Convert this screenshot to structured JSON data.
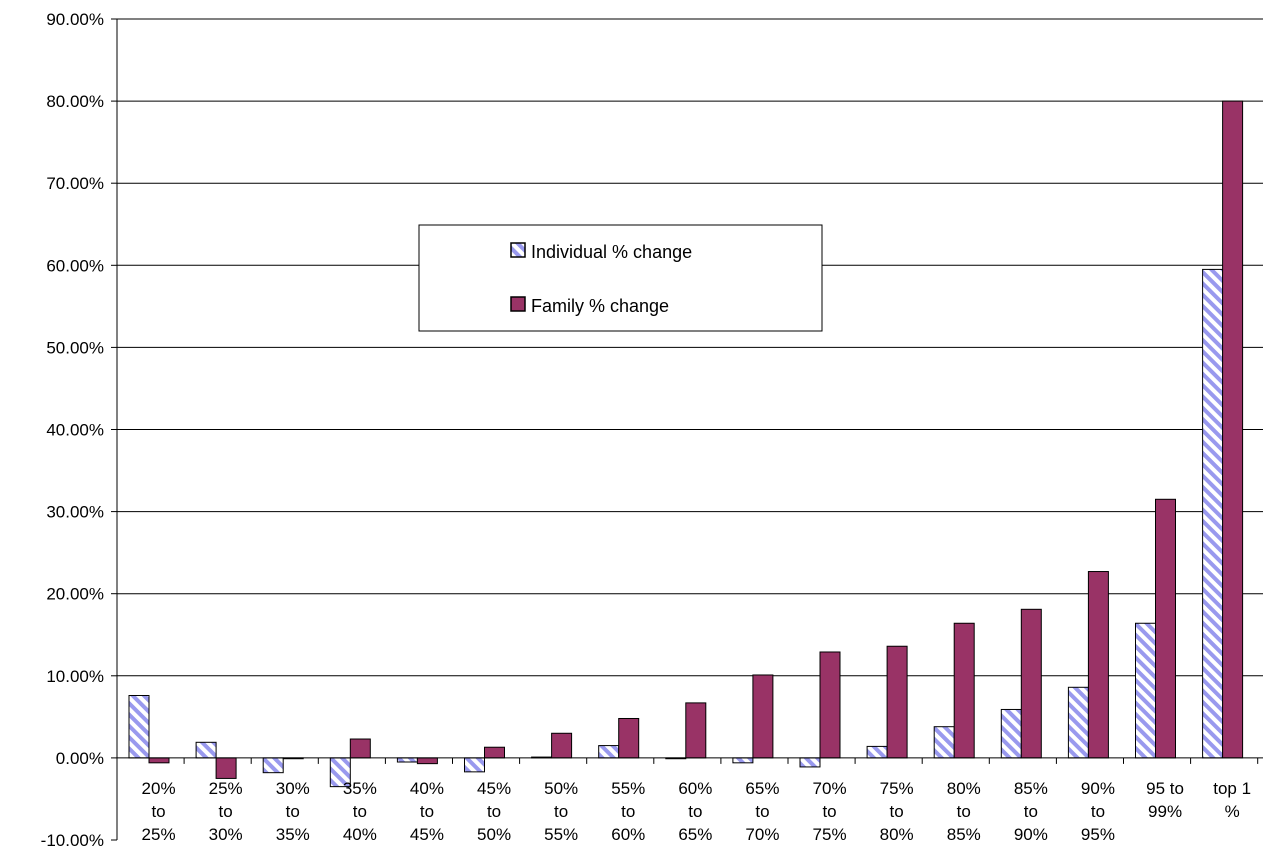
{
  "chart_data": {
    "type": "bar",
    "title": "",
    "xlabel": "",
    "ylabel": "",
    "ylim": [
      -10,
      90
    ],
    "y_ticks": [
      -10,
      0,
      10,
      20,
      30,
      40,
      50,
      60,
      70,
      80,
      90
    ],
    "y_tick_labels": [
      "-10.00%",
      "0.00%",
      "10.00%",
      "20.00%",
      "30.00%",
      "40.00%",
      "50.00%",
      "60.00%",
      "70.00%",
      "80.00%",
      "90.00%"
    ],
    "grid": "horizontal",
    "legend_position": "upper-center",
    "categories": [
      [
        "20%",
        "to",
        "25%"
      ],
      [
        "25%",
        "to",
        "30%"
      ],
      [
        "30%",
        "to",
        "35%"
      ],
      [
        "35%",
        "to",
        "40%"
      ],
      [
        "40%",
        "to",
        "45%"
      ],
      [
        "45%",
        "to",
        "50%"
      ],
      [
        "50%",
        "to",
        "55%"
      ],
      [
        "55%",
        "to",
        "60%"
      ],
      [
        "60%",
        "to",
        "65%"
      ],
      [
        "65%",
        "to",
        "70%"
      ],
      [
        "70%",
        "to",
        "75%"
      ],
      [
        "75%",
        "to",
        "80%"
      ],
      [
        "80%",
        "to",
        "85%"
      ],
      [
        "85%",
        "to",
        "90%"
      ],
      [
        "90%",
        "to",
        "95%"
      ],
      [
        "95 to",
        "99%"
      ],
      [
        "top 1",
        "%"
      ]
    ],
    "series": [
      {
        "name": "Individual % change",
        "fill": "hatched",
        "colors": [
          "#9999ee",
          "#ffffff"
        ],
        "values": [
          7.6,
          1.9,
          -1.8,
          -3.5,
          -0.5,
          -1.7,
          0.1,
          1.5,
          -0.1,
          -0.6,
          -1.1,
          1.4,
          3.8,
          5.9,
          8.6,
          16.4,
          59.5
        ]
      },
      {
        "name": "Family % change",
        "fill": "solid",
        "colors": [
          "#993366"
        ],
        "values": [
          -0.6,
          -2.5,
          -0.1,
          2.3,
          -0.7,
          1.3,
          3.0,
          4.8,
          6.7,
          10.1,
          12.9,
          13.6,
          16.4,
          18.1,
          22.7,
          31.5,
          80.0
        ]
      }
    ]
  }
}
